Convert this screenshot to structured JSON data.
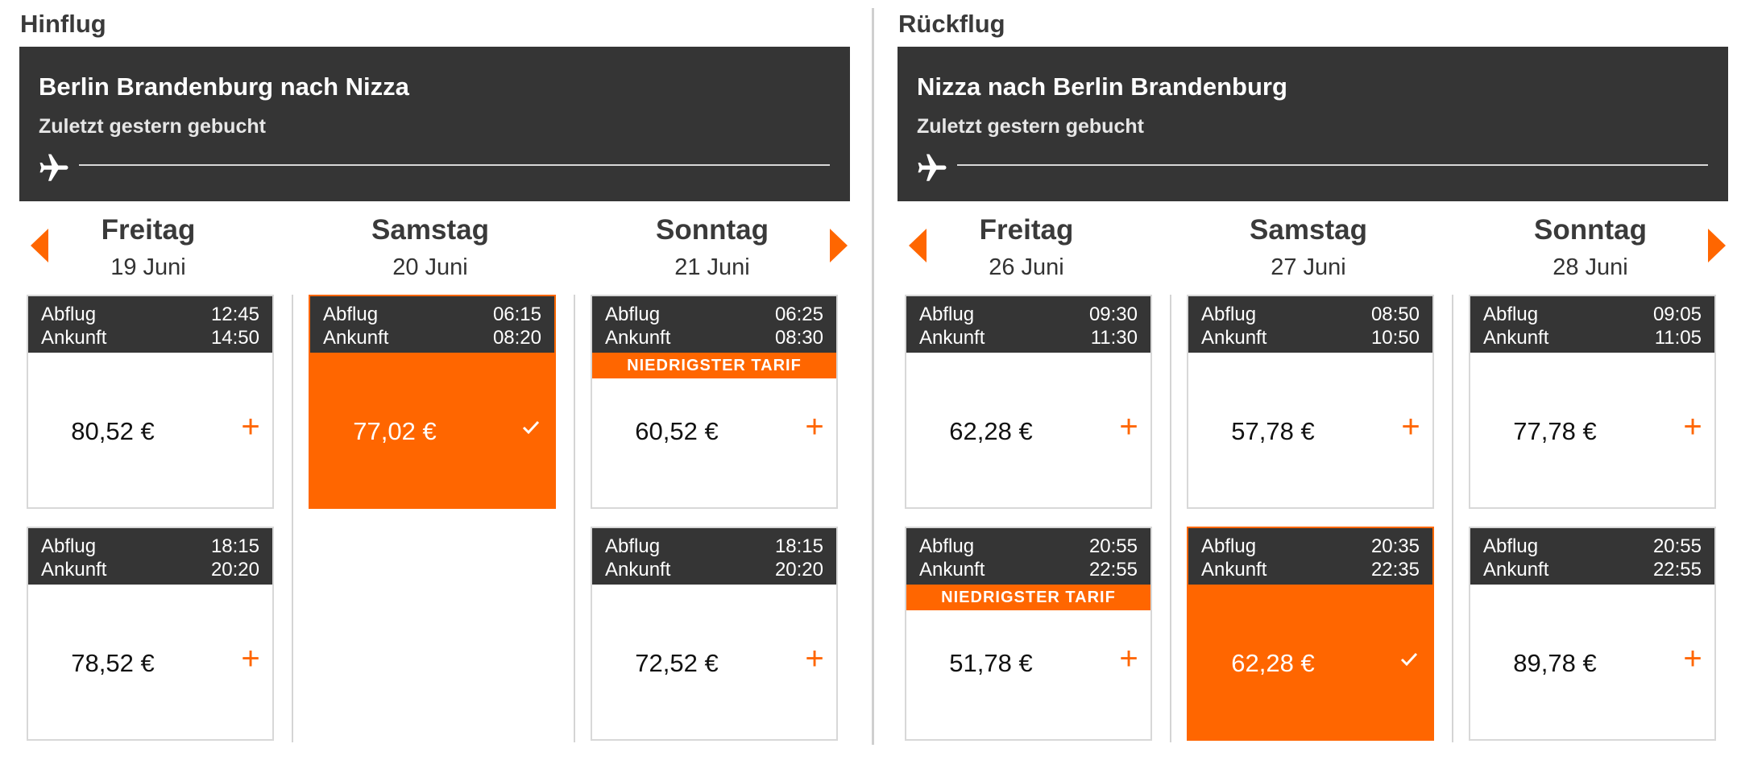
{
  "colors": {
    "accent": "#ff6600",
    "header_bg": "#353535",
    "border": "#d8d8d8"
  },
  "icons": {
    "plane": "airplane-icon",
    "prev": "arrow-left-icon",
    "next": "arrow-right-icon",
    "add": "plus-icon",
    "selected": "checkmark-icon"
  },
  "outbound": {
    "title": "Hinflug",
    "route": "Berlin Brandenburg nach Nizza",
    "last_booked": "Zuletzt gestern gebucht",
    "days": [
      {
        "name": "Freitag",
        "date": "19 Juni"
      },
      {
        "name": "Samstag",
        "date": "20 Juni"
      },
      {
        "name": "Sonntag",
        "date": "21 Juni"
      }
    ],
    "flights": [
      {
        "depart_label": "Abflug",
        "depart": "12:45",
        "arrive_label": "Ankunft",
        "arrive": "14:50",
        "price": "80,52 €",
        "add": "+"
      },
      {
        "depart_label": "Abflug",
        "depart": "18:15",
        "arrive_label": "Ankunft",
        "arrive": "20:20",
        "price": "78,52 €",
        "add": "+"
      },
      {
        "depart_label": "Abflug",
        "depart": "06:15",
        "arrive_label": "Ankunft",
        "arrive": "08:20",
        "price": "77,02 €",
        "selected": true
      },
      {
        "depart_label": "Abflug",
        "depart": "06:25",
        "arrive_label": "Ankunft",
        "arrive": "08:30",
        "badge": "NIEDRIGSTER TARIF",
        "price": "60,52 €",
        "add": "+"
      },
      {
        "depart_label": "Abflug",
        "depart": "18:15",
        "arrive_label": "Ankunft",
        "arrive": "20:20",
        "price": "72,52 €",
        "add": "+"
      }
    ]
  },
  "return": {
    "title": "Rückflug",
    "route": "Nizza nach Berlin Brandenburg",
    "last_booked": "Zuletzt gestern gebucht",
    "days": [
      {
        "name": "Freitag",
        "date": "26 Juni"
      },
      {
        "name": "Samstag",
        "date": "27 Juni"
      },
      {
        "name": "Sonntag",
        "date": "28 Juni"
      }
    ],
    "flights": [
      {
        "depart_label": "Abflug",
        "depart": "09:30",
        "arrive_label": "Ankunft",
        "arrive": "11:30",
        "price": "62,28 €",
        "add": "+"
      },
      {
        "depart_label": "Abflug",
        "depart": "20:55",
        "arrive_label": "Ankunft",
        "arrive": "22:55",
        "badge": "NIEDRIGSTER TARIF",
        "price": "51,78 €",
        "add": "+"
      },
      {
        "depart_label": "Abflug",
        "depart": "08:50",
        "arrive_label": "Ankunft",
        "arrive": "10:50",
        "price": "57,78 €",
        "add": "+"
      },
      {
        "depart_label": "Abflug",
        "depart": "20:35",
        "arrive_label": "Ankunft",
        "arrive": "22:35",
        "price": "62,28 €",
        "selected": true
      },
      {
        "depart_label": "Abflug",
        "depart": "09:05",
        "arrive_label": "Ankunft",
        "arrive": "11:05",
        "price": "77,78 €",
        "add": "+"
      },
      {
        "depart_label": "Abflug",
        "depart": "20:55",
        "arrive_label": "Ankunft",
        "arrive": "22:55",
        "price": "89,78 €",
        "add": "+"
      }
    ]
  }
}
